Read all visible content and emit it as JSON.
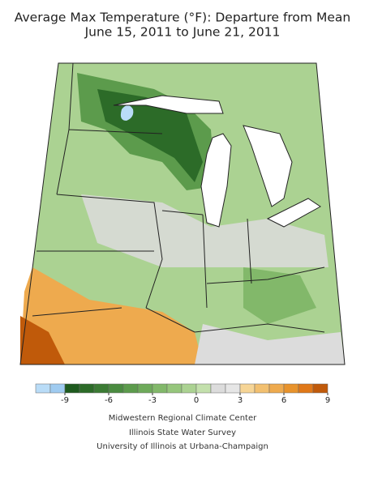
{
  "title": "Average Max Temperature (°F): Departure from Mean",
  "subtitle": "June 15, 2011 to June 21, 2011",
  "legend": {
    "range": [
      -11,
      9
    ],
    "ticks": [
      -9,
      -6,
      -3,
      0,
      3,
      6,
      9
    ],
    "colors": [
      "#b9dcf7",
      "#9fcbf0",
      "#1e5a1e",
      "#2c6b28",
      "#3b7b34",
      "#4a8b40",
      "#5c9b4c",
      "#6eaa5a",
      "#82b86a",
      "#96c67c",
      "#abd292",
      "#c3e0ac",
      "#dcdcdc",
      "#e6e6e6",
      "#f6d596",
      "#f2c070",
      "#eeaa4e",
      "#e8932c",
      "#e07818",
      "#c05a0a"
    ]
  },
  "credits": [
    "Midwestern Regional Climate Center",
    "Illinois State Water Survey",
    "University of Illinois at Urbana-Champaign"
  ]
}
